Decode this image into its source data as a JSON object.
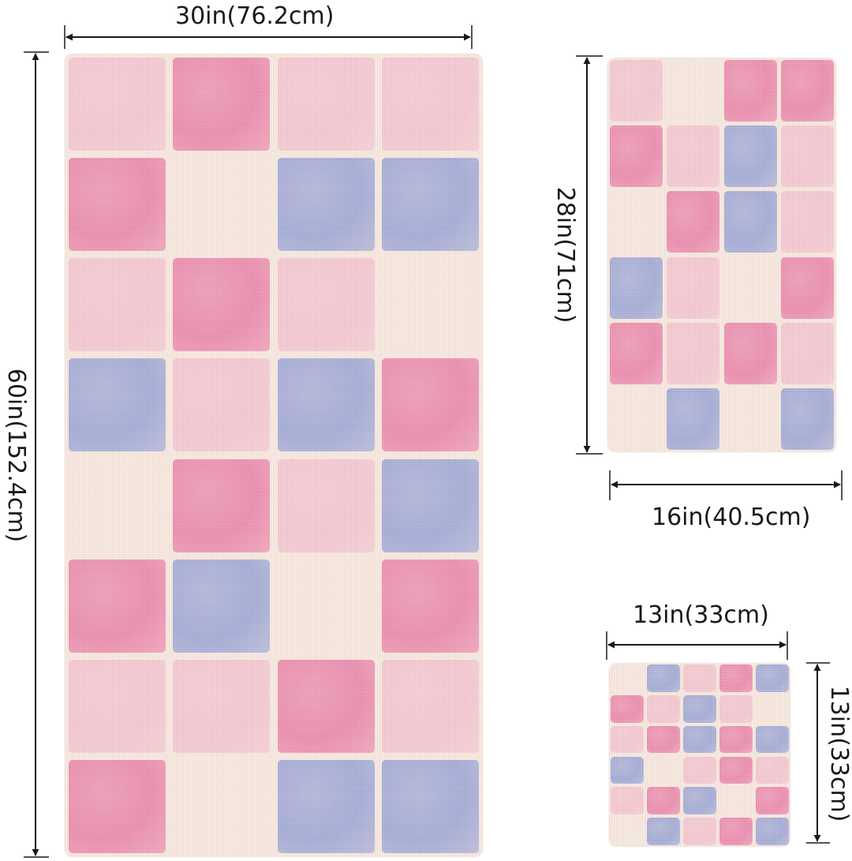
{
  "dimensions": {
    "large_towel_width": "30in(76.2cm)",
    "large_towel_height": "60in(152.4cm)",
    "hand_towel_height": "28in(71cm)",
    "hand_towel_width": "16in(40.5cm)",
    "wash_cloth_width": "13in(33cm)",
    "wash_cloth_height": "13in(33cm)"
  },
  "colors": {
    "pink": "#ea87ac",
    "light_pink": "#f3c2cf",
    "blue": "#9ea8d6",
    "cream": "#f6e8df",
    "arrow": "#1a1a1a"
  },
  "patterns": {
    "large_towel": [
      "LPLL",
      "PCBB",
      "LPLC",
      "BLBP",
      "CPLB",
      "PBCP",
      "LLPL",
      "PCBB"
    ],
    "hand_towel": [
      "LCPP",
      "PLBL",
      "CPBL",
      "BLCP",
      "PLPL",
      "CBCB"
    ],
    "wash_cloth": [
      "CBLPB",
      "PLBLC",
      "LPBPB",
      "BCLPL",
      "LPBCP",
      "CBLPB"
    ]
  }
}
